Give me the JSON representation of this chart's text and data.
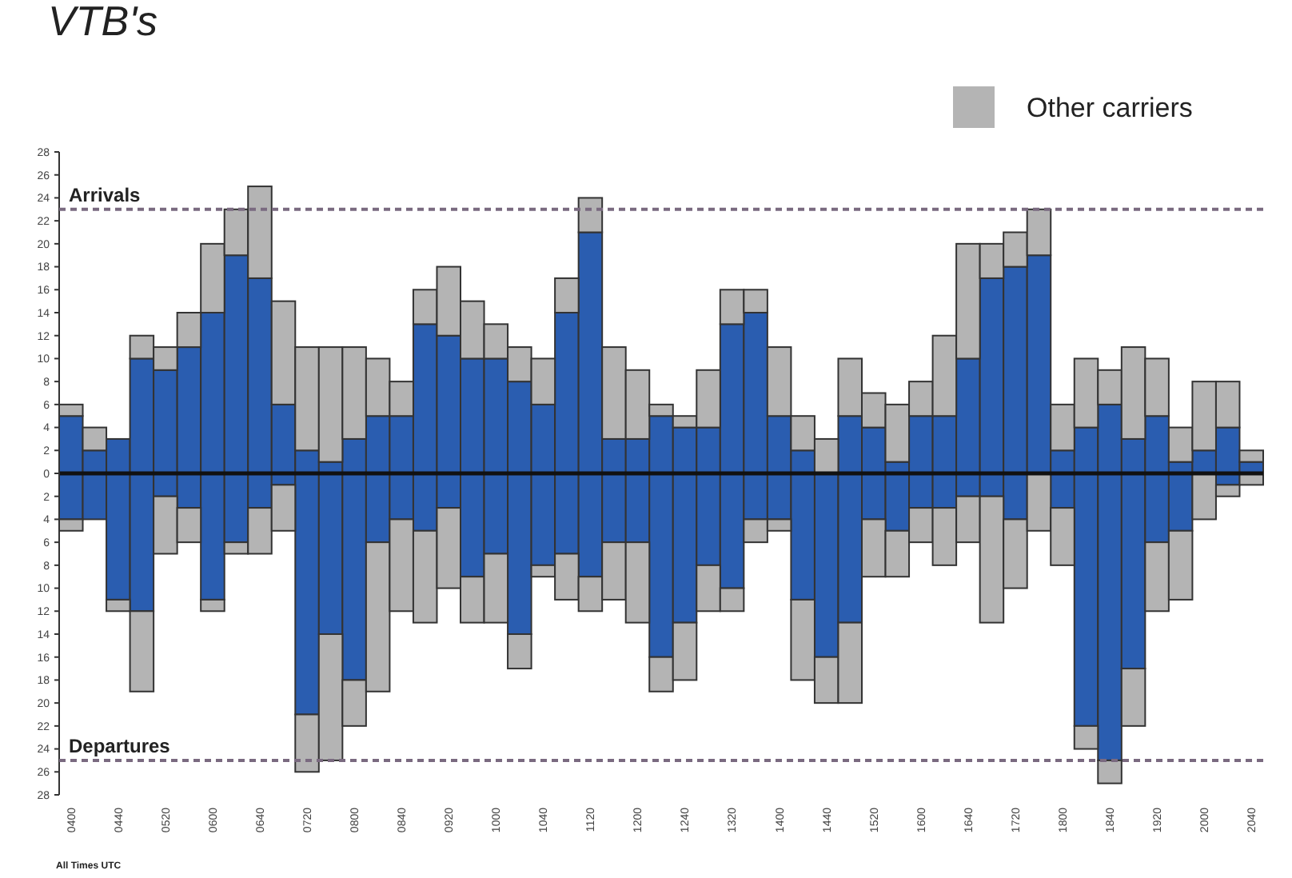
{
  "chart_data": {
    "type": "bar",
    "title": "VTB's",
    "stacked": true,
    "categories": [
      "0400",
      null,
      "0440",
      null,
      "0520",
      null,
      "0600",
      null,
      "0640",
      null,
      "0720",
      null,
      "0800",
      null,
      "0840",
      null,
      "0920",
      null,
      "1000",
      null,
      "1040",
      null,
      "1120",
      null,
      "1200",
      null,
      "1240",
      null,
      "1320",
      null,
      "1400",
      null,
      "1440",
      null,
      "1520",
      null,
      "1600",
      null,
      "1640",
      null,
      "1720",
      null,
      "1800",
      null,
      "1840",
      null,
      "1920",
      null,
      "2000",
      null,
      "2040"
    ],
    "series": [
      {
        "color": "#2a5db0",
        "values": [
          5,
          2,
          3,
          10,
          9,
          11,
          14,
          19,
          17,
          6,
          2,
          1,
          3,
          5,
          5,
          13,
          12,
          10,
          10,
          8,
          6,
          14,
          21,
          3,
          3,
          5,
          4,
          4,
          13,
          14,
          5,
          2,
          0,
          5,
          4,
          1,
          5,
          5,
          10,
          17,
          18,
          19,
          2,
          4,
          6,
          3,
          5,
          1,
          2,
          4,
          1
        ]
      },
      {
        "name": "Other carriers",
        "color": "#b4b4b4",
        "values": [
          1,
          2,
          0,
          2,
          2,
          3,
          6,
          4,
          8,
          9,
          9,
          10,
          8,
          5,
          3,
          3,
          6,
          5,
          3,
          3,
          4,
          3,
          3,
          8,
          6,
          1,
          1,
          5,
          3,
          2,
          6,
          3,
          3,
          5,
          3,
          5,
          3,
          7,
          10,
          3,
          3,
          4,
          4,
          6,
          3,
          8,
          5,
          3,
          6,
          4,
          1
        ]
      },
      {
        "color": "#2a5db0",
        "values": [
          -4,
          -4,
          -11,
          -12,
          -2,
          -3,
          -11,
          -6,
          -3,
          -1,
          -21,
          -14,
          -18,
          -6,
          -4,
          -5,
          -3,
          -9,
          -7,
          -14,
          -8,
          -7,
          -9,
          -6,
          -6,
          -16,
          -13,
          -8,
          -10,
          -4,
          -4,
          -11,
          -16,
          -13,
          -4,
          -5,
          -3,
          -3,
          -2,
          -2,
          -4,
          0,
          -3,
          -22,
          -25,
          -17,
          -6,
          -5,
          0,
          -1,
          null
        ]
      },
      {
        "color": "#b4b4b4",
        "values": [
          -1,
          0,
          -1,
          -7,
          -5,
          -3,
          -1,
          -1,
          -4,
          -4,
          -5,
          -11,
          -4,
          -13,
          -8,
          -8,
          -7,
          -4,
          -6,
          -3,
          -1,
          -4,
          -3,
          -5,
          -7,
          -3,
          -5,
          -4,
          -2,
          -2,
          -1,
          -7,
          -4,
          -7,
          -5,
          -4,
          -3,
          -5,
          -4,
          -11,
          -6,
          -5,
          -5,
          -2,
          -2,
          -5,
          -6,
          -6,
          -4,
          -1,
          -1
        ]
      }
    ],
    "ylim": [
      -28,
      28
    ],
    "yticks": [
      {
        "value": -28,
        "label": "28"
      },
      {
        "value": -26,
        "label": "26"
      },
      {
        "value": -24,
        "label": "24"
      },
      {
        "value": -22,
        "label": "22"
      },
      {
        "value": -20,
        "label": "20"
      },
      {
        "value": -18,
        "label": "18"
      },
      {
        "value": -16,
        "label": "16"
      },
      {
        "value": -14,
        "label": "14"
      },
      {
        "value": -12,
        "label": "12"
      },
      {
        "value": -10,
        "label": "10"
      },
      {
        "value": -8,
        "label": "8"
      },
      {
        "value": -6,
        "label": "6"
      },
      {
        "value": -4,
        "label": "4"
      },
      {
        "value": -2,
        "label": "2"
      },
      0,
      2,
      4,
      6,
      8,
      10,
      12,
      14,
      16,
      18,
      20,
      22,
      24,
      26,
      28
    ],
    "ref_lines": [
      {
        "axis": "y",
        "value": 23,
        "label": "Arrivals",
        "color": "#7a6a80",
        "line_style": "dashed"
      },
      {
        "axis": "y",
        "value": -25,
        "label": "Departures",
        "color": "#7a6a80",
        "line_style": "dashed"
      }
    ],
    "annotations": [
      "All Times UTC"
    ],
    "legend": "top right"
  }
}
